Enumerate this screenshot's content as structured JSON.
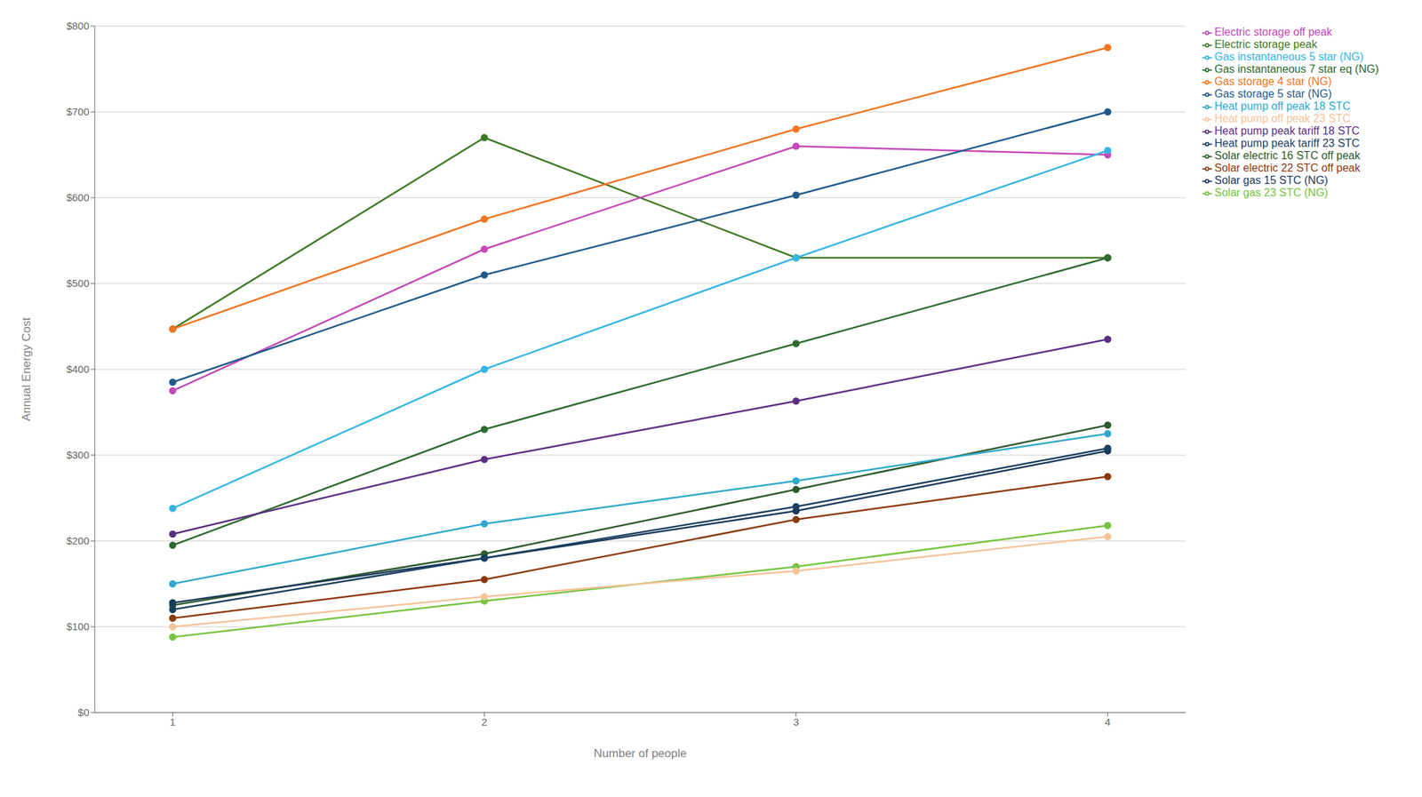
{
  "chart_data": {
    "type": "line",
    "xlabel": "Number of people",
    "ylabel": "Annual Energy Cost",
    "x": [
      1,
      2,
      3,
      4
    ],
    "series": [
      {
        "name": "Electric storage peak",
        "color": "#3d7a22",
        "values": [
          447,
          670,
          530,
          530
        ]
      },
      {
        "name": "Electric storage off peak",
        "color": "#c548b8",
        "values": [
          375,
          540,
          660,
          650
        ]
      },
      {
        "name": "Gas storage 4 star (NG)",
        "color": "#f07520",
        "values": [
          447,
          575,
          680,
          775
        ]
      },
      {
        "name": "Gas storage 5 star (NG)",
        "color": "#1f5a8a",
        "values": [
          385,
          510,
          603,
          700
        ]
      },
      {
        "name": "Gas instantaneous 5 star (NG)",
        "color": "#33b5e5",
        "values": [
          238,
          400,
          530,
          655
        ]
      },
      {
        "name": "Gas instantaneous 7 star eq (NG)",
        "color": "#2d6b2d",
        "values": [
          195,
          330,
          430,
          530
        ]
      },
      {
        "name": "Heat pump peak tariff 18 STC",
        "color": "#5b2d82",
        "values": [
          208,
          295,
          363,
          435
        ]
      },
      {
        "name": "Solar electric 16 STC off peak",
        "color": "#2d5a2d",
        "values": [
          125,
          185,
          260,
          335
        ]
      },
      {
        "name": "Solar gas 15 STC (NG)",
        "color": "#1a3a5c",
        "values": [
          128,
          180,
          235,
          305
        ]
      },
      {
        "name": "Heat pump off peak 18 STC",
        "color": "#2fa8cc",
        "values": [
          150,
          220,
          270,
          325
        ]
      },
      {
        "name": "Solar electric 22 STC off peak",
        "color": "#8b3a0f",
        "values": [
          110,
          155,
          225,
          275
        ]
      },
      {
        "name": "Heat pump peak tariff 23 STC",
        "color": "#1a4060",
        "values": [
          120,
          180,
          240,
          308
        ]
      },
      {
        "name": "Solar gas 23 STC (NG)",
        "color": "#76c442",
        "values": [
          88,
          130,
          170,
          218
        ]
      },
      {
        "name": "Heat pump off peak 23 STC",
        "color": "#f5c49a",
        "values": [
          100,
          135,
          165,
          205
        ]
      }
    ],
    "xlim": [
      0.75,
      4.25
    ],
    "xticks": [
      1,
      2,
      3,
      4
    ],
    "ylim": [
      0,
      800
    ],
    "yticks": [
      {
        "value": 0,
        "label": "$0"
      },
      {
        "value": 100,
        "label": "$100"
      },
      {
        "value": 200,
        "label": "$200"
      },
      {
        "value": 300,
        "label": "$300"
      },
      {
        "value": 400,
        "label": "$400"
      },
      {
        "value": 500,
        "label": "$500"
      },
      {
        "value": 600,
        "label": "$600"
      },
      {
        "value": 700,
        "label": "$700"
      },
      {
        "value": 800,
        "label": "$800"
      }
    ],
    "grid": "y",
    "legend": "right",
    "marker": "circle"
  }
}
